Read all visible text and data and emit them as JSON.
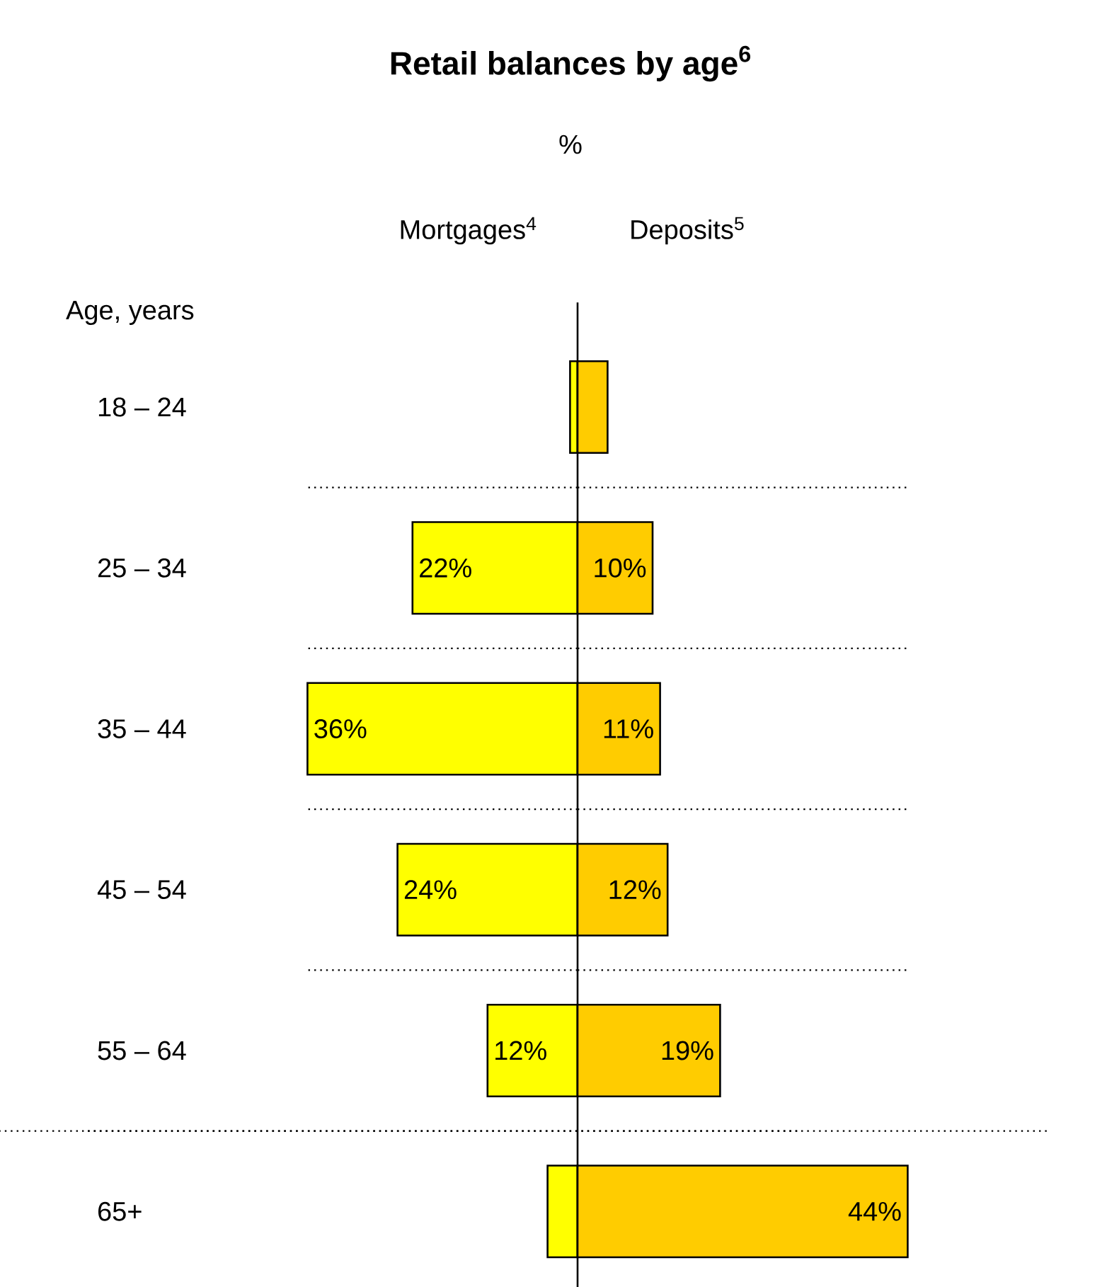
{
  "chart_data": [
    {
      "type": "bar",
      "orientation": "horizontal",
      "title": "Retail balances by age$^{6}$",
      "subtitle": "%",
      "ylabel": "Age, years",
      "categories": [
        "18 – 24",
        "25 – 34",
        "35 – 44",
        "45 – 54",
        "55 – 64",
        "65+"
      ],
      "xlim": [
        36,
        0
      ],
      "grid": "y",
      "series": [
        {
          "name": "Mortgages$^{4}$",
          "color": "#ffff00",
          "values": [
            1,
            22,
            36,
            24,
            12,
            4
          ],
          "value_labels": [
            null,
            "22%",
            "36%",
            "24%",
            "12%",
            null
          ]
        }
      ]
    },
    {
      "type": "bar",
      "orientation": "horizontal",
      "categories": [
        null,
        null,
        null,
        null,
        null,
        null
      ],
      "xlim": [
        0,
        44
      ],
      "grid": "y",
      "series": [
        {
          "name": "Deposits$^{5}$",
          "color": "#ffcc00",
          "values": [
            4,
            10,
            11,
            12,
            19,
            44
          ],
          "value_labels": [
            null,
            "10%",
            "11%",
            "12%",
            "19%",
            "44%"
          ]
        }
      ]
    }
  ]
}
